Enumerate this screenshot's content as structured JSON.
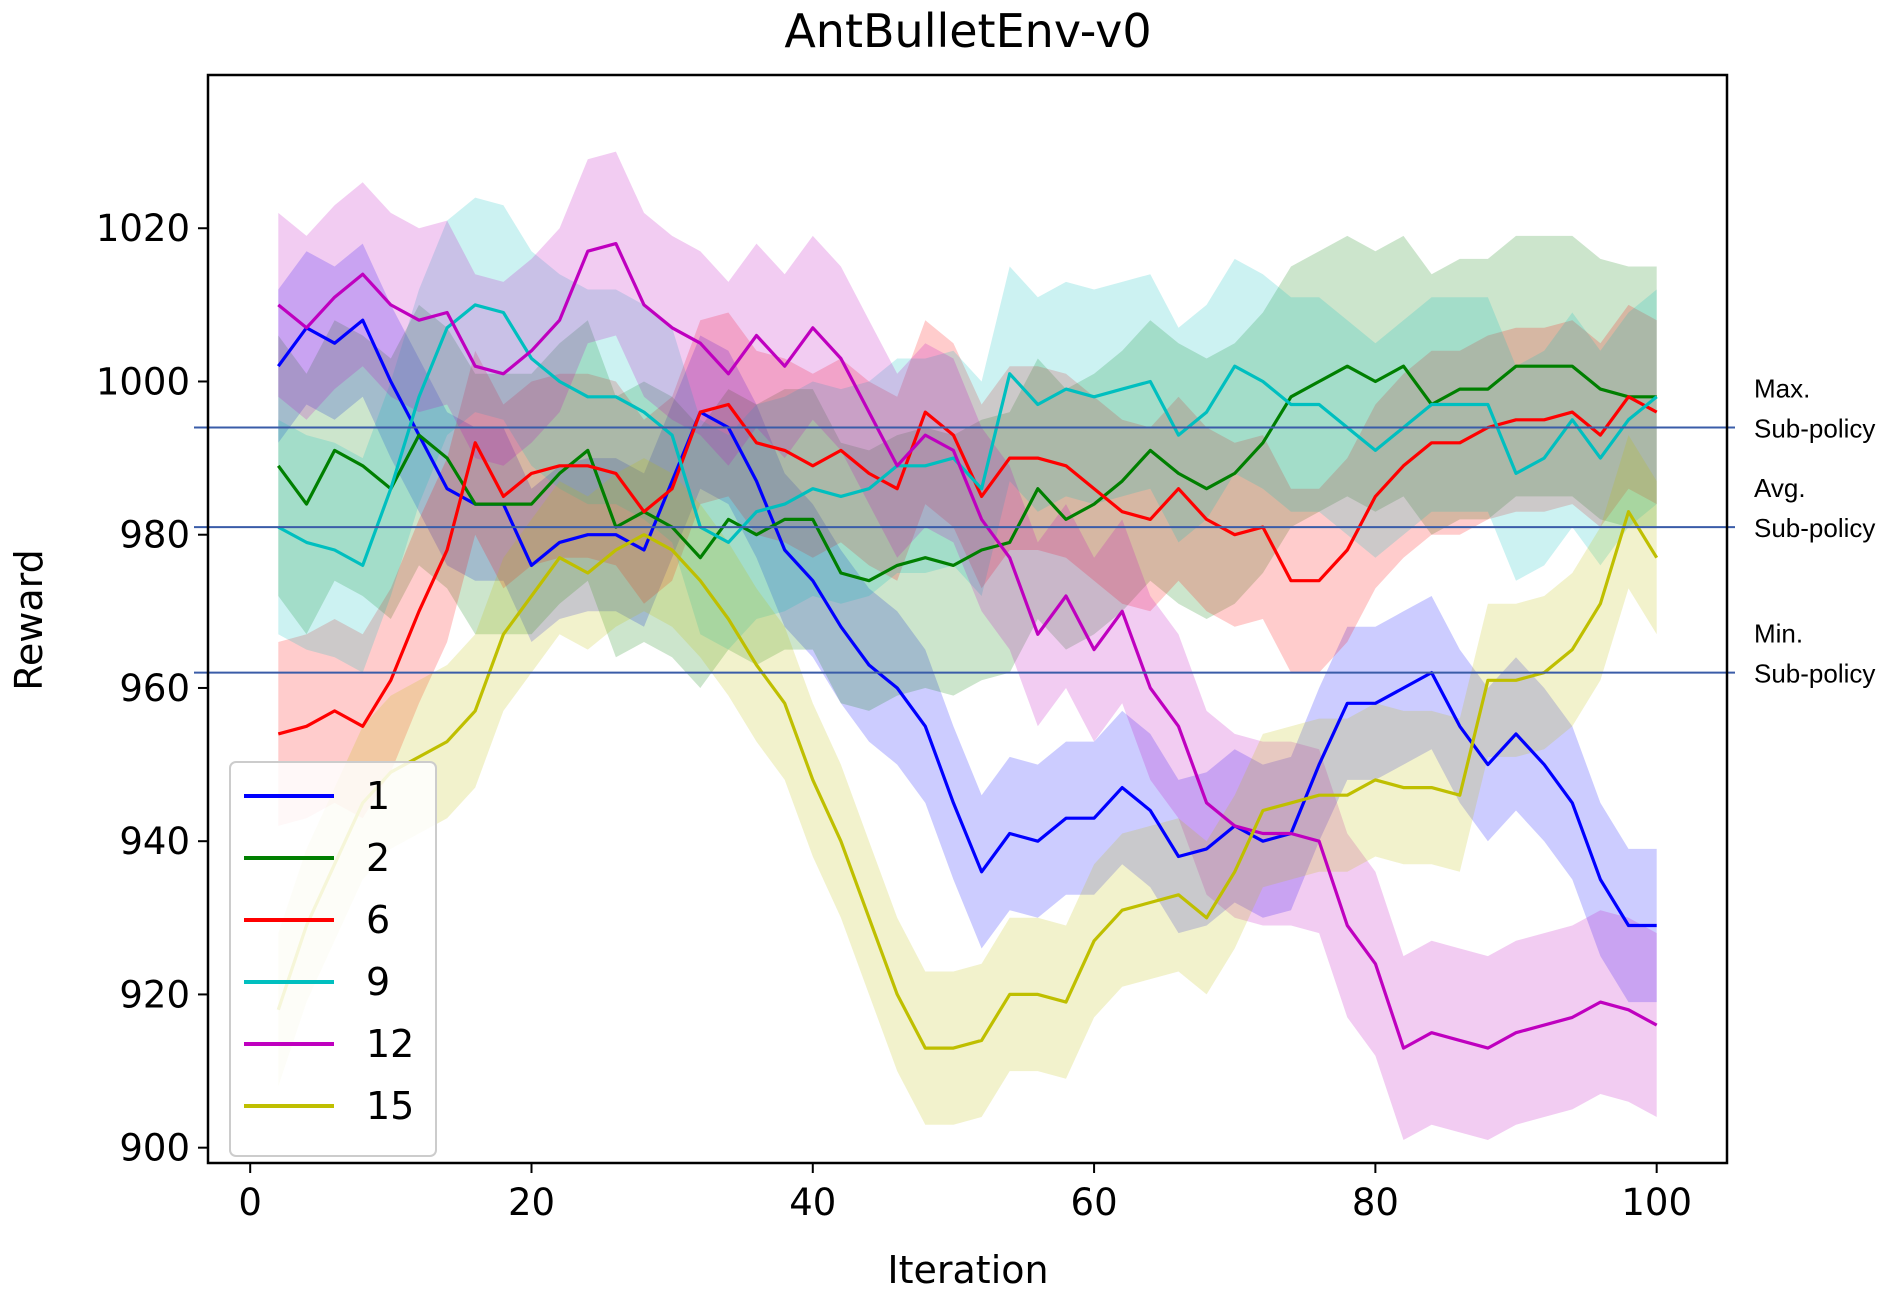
{
  "chart_data": {
    "type": "line",
    "title": "AntBulletEnv-v0",
    "xlabel": "Iteration",
    "ylabel": "Reward",
    "xlim": [
      -3,
      105
    ],
    "ylim": [
      898,
      1040
    ],
    "xticks": [
      0,
      20,
      40,
      60,
      80,
      100
    ],
    "yticks": [
      900,
      920,
      940,
      960,
      980,
      1000,
      1020
    ],
    "grid": false,
    "legend_position": "lower-left",
    "x": [
      2,
      4,
      6,
      8,
      10,
      12,
      14,
      16,
      18,
      20,
      22,
      24,
      26,
      28,
      30,
      32,
      34,
      36,
      38,
      40,
      42,
      44,
      46,
      48,
      50,
      52,
      54,
      56,
      58,
      60,
      62,
      64,
      66,
      68,
      70,
      72,
      74,
      76,
      78,
      80,
      82,
      84,
      86,
      88,
      90,
      92,
      94,
      96,
      98,
      100
    ],
    "series": [
      {
        "name": "1",
        "color": "#0000ff",
        "values": [
          1002,
          1007,
          1005,
          1008,
          1000,
          993,
          986,
          984,
          984,
          976,
          979,
          980,
          980,
          978,
          987,
          996,
          994,
          987,
          978,
          974,
          968,
          963,
          960,
          955,
          945,
          936,
          941,
          940,
          943,
          943,
          947,
          944,
          938,
          939,
          942,
          940,
          941,
          950,
          958,
          958,
          960,
          962,
          955,
          950,
          954,
          950,
          945,
          935,
          929,
          929
        ],
        "band": 10
      },
      {
        "name": "2",
        "color": "#007f00",
        "values": [
          989,
          984,
          991,
          989,
          986,
          993,
          990,
          984,
          984,
          984,
          988,
          991,
          981,
          983,
          981,
          977,
          982,
          980,
          982,
          982,
          975,
          974,
          976,
          977,
          976,
          978,
          979,
          986,
          982,
          984,
          987,
          991,
          988,
          986,
          988,
          992,
          998,
          1000,
          1002,
          1000,
          1002,
          997,
          999,
          999,
          1002,
          1002,
          1002,
          999,
          998,
          998
        ],
        "band": 17
      },
      {
        "name": "6",
        "color": "#ff0000",
        "values": [
          954,
          955,
          957,
          955,
          961,
          970,
          978,
          992,
          985,
          988,
          989,
          989,
          988,
          983,
          986,
          996,
          997,
          992,
          991,
          989,
          991,
          988,
          986,
          996,
          993,
          985,
          990,
          990,
          989,
          986,
          983,
          982,
          986,
          982,
          980,
          981,
          974,
          974,
          978,
          985,
          989,
          992,
          992,
          994,
          995,
          995,
          996,
          993,
          998,
          996
        ],
        "band": 12
      },
      {
        "name": "9",
        "color": "#00bfbf",
        "values": [
          981,
          979,
          978,
          976,
          986,
          998,
          1007,
          1010,
          1009,
          1003,
          1000,
          998,
          998,
          996,
          993,
          981,
          979,
          983,
          984,
          986,
          985,
          986,
          989,
          989,
          990,
          986,
          1001,
          997,
          999,
          998,
          999,
          1000,
          993,
          996,
          1002,
          1000,
          997,
          997,
          994,
          991,
          994,
          997,
          997,
          997,
          988,
          990,
          995,
          990,
          995,
          998
        ],
        "band": 14
      },
      {
        "name": "12",
        "color": "#bf00bf",
        "values": [
          1010,
          1007,
          1011,
          1014,
          1010,
          1008,
          1009,
          1002,
          1001,
          1004,
          1008,
          1017,
          1018,
          1010,
          1007,
          1005,
          1001,
          1006,
          1002,
          1007,
          1003,
          996,
          989,
          993,
          991,
          982,
          977,
          967,
          972,
          965,
          970,
          960,
          955,
          945,
          942,
          941,
          941,
          940,
          929,
          924,
          913,
          915,
          914,
          913,
          915,
          916,
          917,
          919,
          918,
          916
        ],
        "band": 12
      },
      {
        "name": "15",
        "color": "#bfbf00",
        "values": [
          918,
          929,
          937,
          945,
          949,
          951,
          953,
          957,
          967,
          972,
          977,
          975,
          978,
          980,
          978,
          974,
          969,
          963,
          958,
          948,
          940,
          930,
          920,
          913,
          913,
          914,
          920,
          920,
          919,
          927,
          931,
          932,
          933,
          930,
          936,
          944,
          945,
          946,
          946,
          948,
          947,
          947,
          946,
          961,
          961,
          962,
          965,
          971,
          983,
          977
        ],
        "band": 10
      }
    ],
    "reference_lines": [
      {
        "label": "Max.\nSub-policy",
        "label_lines": [
          "Max.",
          "Sub-policy"
        ],
        "value": 994,
        "color": "#3a5ca8"
      },
      {
        "label": "Avg.\nSub-policy",
        "label_lines": [
          "Avg.",
          "Sub-policy"
        ],
        "value": 981,
        "color": "#3a5ca8"
      },
      {
        "label": "Min.\nSub-policy",
        "label_lines": [
          "Min.",
          "Sub-policy"
        ],
        "value": 962,
        "color": "#3a5ca8"
      }
    ]
  }
}
